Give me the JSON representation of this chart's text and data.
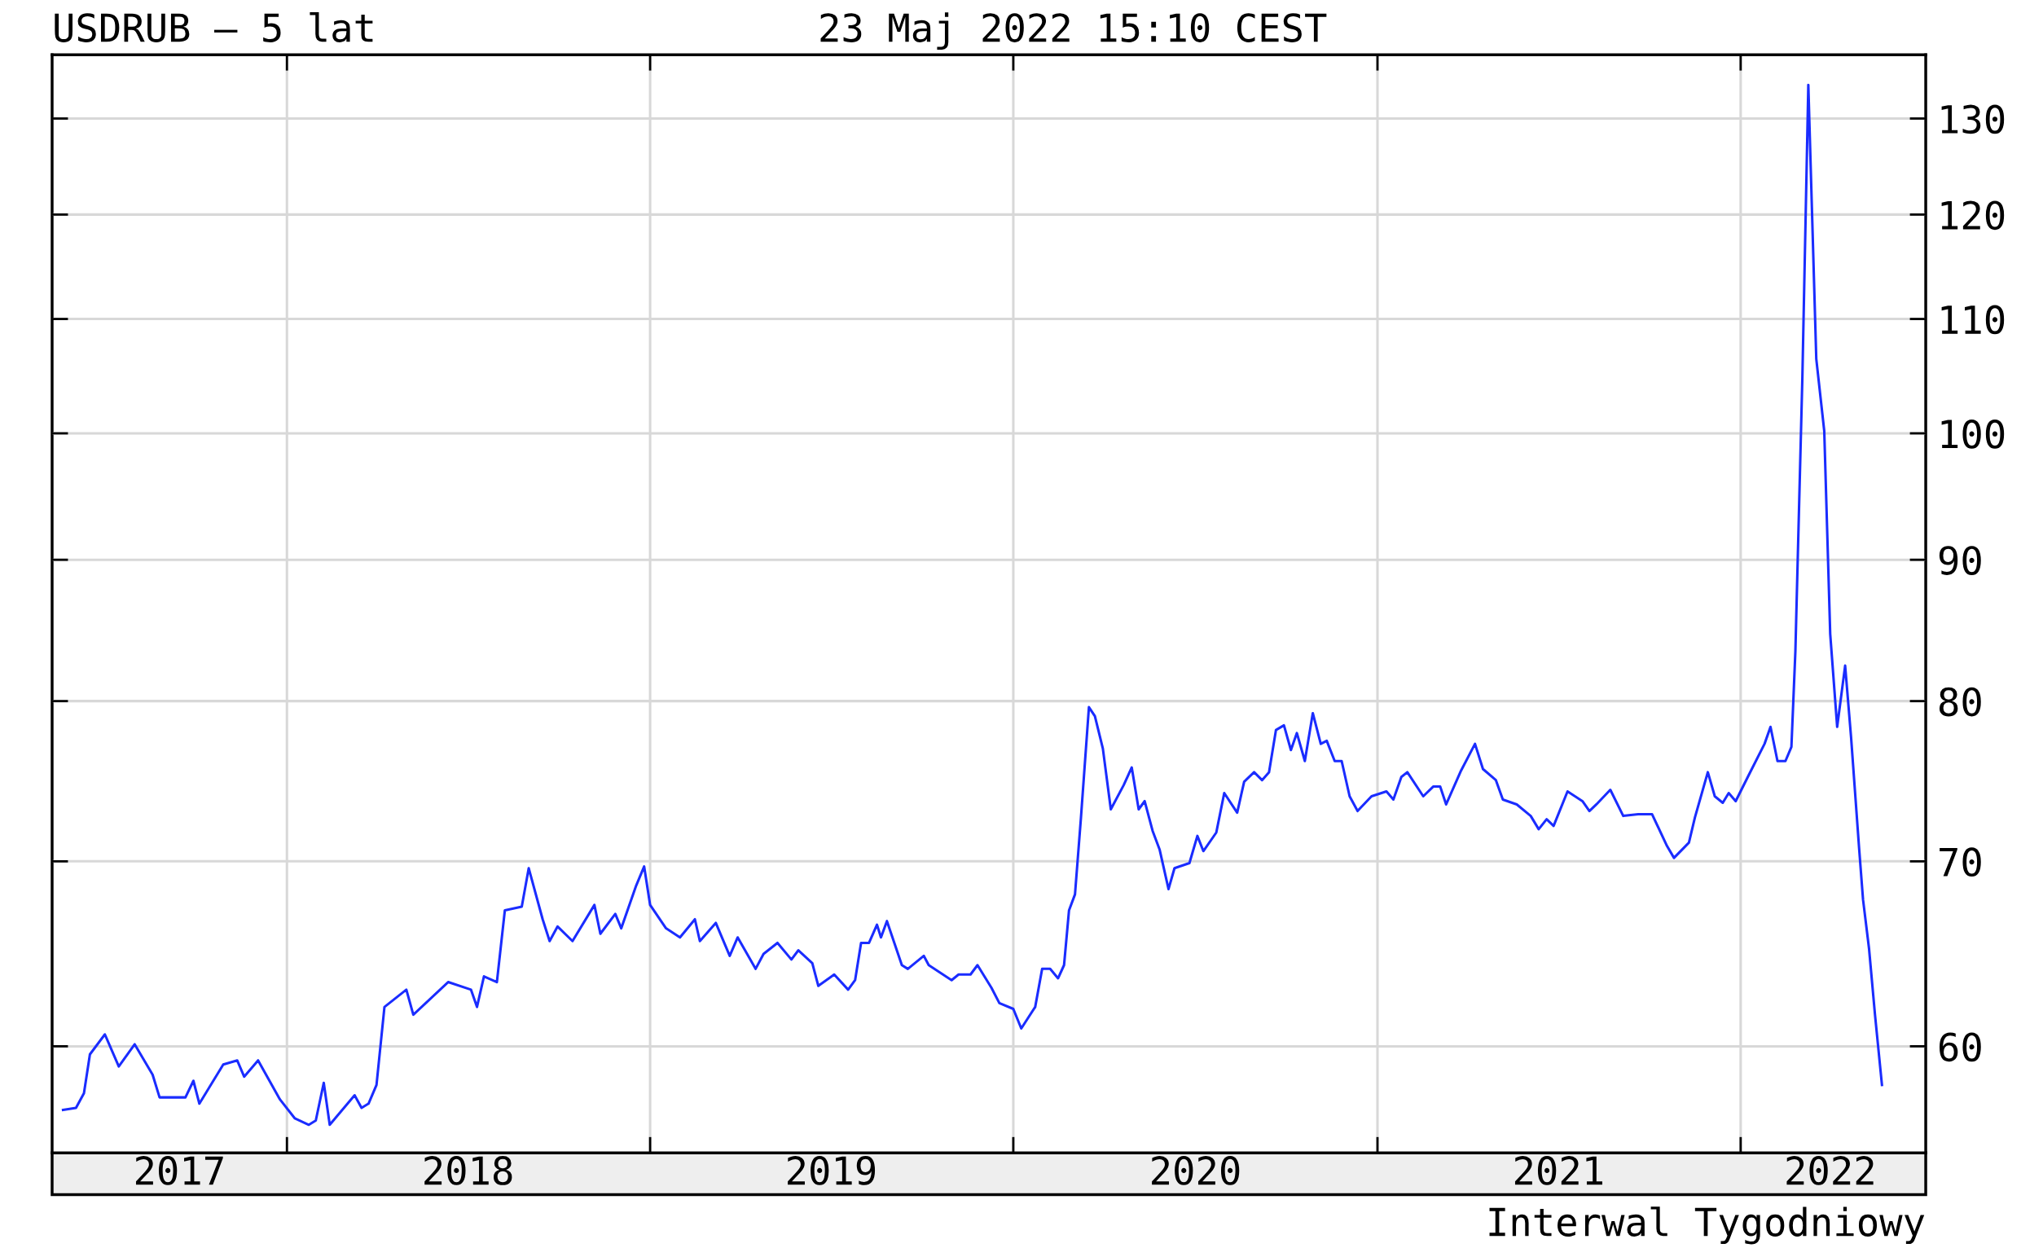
{
  "chart_data": {
    "type": "line",
    "title": "USDRUB – 5 lat",
    "subtitle": "23 Maj 2022 15:10 CEST",
    "annotations": [
      "Interwal Tygodniowy"
    ],
    "series": [
      {
        "color": "#1a2cff",
        "axis": "y2",
        "x": [
          "2017-05-21",
          "2017-06-03",
          "2017-06-11",
          "2017-06-17",
          "2017-07-02",
          "2017-07-16",
          "2017-08-01",
          "2017-08-19",
          "2017-08-26",
          "2017-09-21",
          "2017-09-29",
          "2017-10-05",
          "2017-10-29",
          "2017-11-12",
          "2017-11-19",
          "2017-12-03",
          "2017-12-25",
          "2018-01-09",
          "2018-01-23",
          "2018-01-30",
          "2018-02-07",
          "2018-02-13",
          "2018-03-10",
          "2018-03-17",
          "2018-03-24",
          "2018-04-01",
          "2018-04-09",
          "2018-05-01",
          "2018-05-08",
          "2018-06-12",
          "2018-07-05",
          "2018-07-11",
          "2018-07-18",
          "2018-07-31",
          "2018-08-08",
          "2018-08-25",
          "2018-09-01",
          "2018-09-15",
          "2018-09-22",
          "2018-09-30",
          "2018-10-15",
          "2018-11-06",
          "2018-11-12",
          "2018-11-27",
          "2018-12-03",
          "2018-12-18",
          "2018-12-26",
          "2019-01-01",
          "2019-01-17",
          "2019-01-31",
          "2019-02-15",
          "2019-02-20",
          "2019-03-08",
          "2019-03-22",
          "2019-03-30",
          "2019-04-17",
          "2019-04-25",
          "2019-05-09",
          "2019-05-23",
          "2019-05-30",
          "2019-06-13",
          "2019-06-19",
          "2019-07-05",
          "2019-07-19",
          "2019-07-26",
          "2019-08-01",
          "2019-08-09",
          "2019-08-17",
          "2019-08-21",
          "2019-08-27",
          "2019-09-11",
          "2019-09-17",
          "2019-10-03",
          "2019-10-08",
          "2019-10-31",
          "2019-11-07",
          "2019-11-19",
          "2019-11-26",
          "2019-12-10",
          "2019-12-18",
          "2020-01-01",
          "2020-01-09",
          "2020-01-23",
          "2020-01-30",
          "2020-02-07",
          "2020-02-15",
          "2020-02-21",
          "2020-02-26",
          "2020-03-03",
          "2020-03-09",
          "2020-03-17",
          "2020-03-23",
          "2020-03-31",
          "2020-04-08",
          "2020-04-21",
          "2020-04-29",
          "2020-05-06",
          "2020-05-12",
          "2020-05-20",
          "2020-05-27",
          "2020-06-05",
          "2020-06-11",
          "2020-06-26",
          "2020-07-04",
          "2020-07-10",
          "2020-07-23",
          "2020-07-31",
          "2020-08-13",
          "2020-08-20",
          "2020-08-30",
          "2020-09-07",
          "2020-09-14",
          "2020-09-21",
          "2020-09-29",
          "2020-10-06",
          "2020-10-12",
          "2020-10-20",
          "2020-10-28",
          "2020-11-05",
          "2020-11-11",
          "2020-11-19",
          "2020-11-26",
          "2020-12-04",
          "2020-12-12",
          "2020-12-26",
          "2021-01-10",
          "2021-01-17",
          "2021-01-25",
          "2021-01-31",
          "2021-02-16",
          "2021-02-26",
          "2021-03-05",
          "2021-03-11",
          "2021-03-26",
          "2021-04-09",
          "2021-04-17",
          "2021-04-30",
          "2021-05-07",
          "2021-05-21",
          "2021-06-04",
          "2021-06-12",
          "2021-06-20",
          "2021-06-27",
          "2021-07-11",
          "2021-07-26",
          "2021-08-02",
          "2021-08-09",
          "2021-08-23",
          "2021-09-05",
          "2021-09-20",
          "2021-10-04",
          "2021-10-19",
          "2021-10-26",
          "2021-11-10",
          "2021-11-16",
          "2021-11-29",
          "2021-12-06",
          "2021-12-14",
          "2021-12-20",
          "2021-12-27",
          "2022-01-09",
          "2022-01-25",
          "2022-01-31",
          "2022-02-07",
          "2022-02-15",
          "2022-02-21",
          "2022-02-25",
          "2022-03-04",
          "2022-03-10",
          "2022-03-18",
          "2022-03-26",
          "2022-04-01",
          "2022-04-08",
          "2022-04-16",
          "2022-04-22",
          "2022-04-30",
          "2022-05-04",
          "2022-05-10",
          "2022-05-16",
          "2022-05-23"
        ],
        "values": [
          56.9,
          57.0,
          57.7,
          59.6,
          60.6,
          59.0,
          60.1,
          58.6,
          57.5,
          57.5,
          58.3,
          57.2,
          59.1,
          59.3,
          58.5,
          59.3,
          57.4,
          56.5,
          56.2,
          56.4,
          58.2,
          56.2,
          57.6,
          57.0,
          57.2,
          58.1,
          62.0,
          62.9,
          61.6,
          63.3,
          62.9,
          62.0,
          63.6,
          63.3,
          67.2,
          67.4,
          69.6,
          66.7,
          65.5,
          66.3,
          65.5,
          67.5,
          65.9,
          67.0,
          66.2,
          68.6,
          69.7,
          67.5,
          66.2,
          65.7,
          66.7,
          65.5,
          66.5,
          64.7,
          65.7,
          64.0,
          64.8,
          65.4,
          64.5,
          65.0,
          64.3,
          63.1,
          63.7,
          62.9,
          63.4,
          65.4,
          65.4,
          66.4,
          65.7,
          66.6,
          64.2,
          64.0,
          64.7,
          64.2,
          63.4,
          63.7,
          63.7,
          64.2,
          63.0,
          62.2,
          61.9,
          60.9,
          62.0,
          64.0,
          64.0,
          63.5,
          64.2,
          67.2,
          68.1,
          72.6,
          79.6,
          79.0,
          76.9,
          73.1,
          74.6,
          75.7,
          73.1,
          73.6,
          71.8,
          70.7,
          68.4,
          69.6,
          69.9,
          71.5,
          70.6,
          71.7,
          74.1,
          72.9,
          74.8,
          75.4,
          74.9,
          75.4,
          78.1,
          78.4,
          76.8,
          77.9,
          76.1,
          79.2,
          77.2,
          77.4,
          76.1,
          76.1,
          73.9,
          73.0,
          73.9,
          74.2,
          73.7,
          75.1,
          75.4,
          73.9,
          74.5,
          74.5,
          73.4,
          75.5,
          77.2,
          75.6,
          74.9,
          73.7,
          73.4,
          72.7,
          71.9,
          72.5,
          72.1,
          74.2,
          73.6,
          73.0,
          73.4,
          74.3,
          72.7,
          72.8,
          72.8,
          70.9,
          70.2,
          71.1,
          72.6,
          75.4,
          73.9,
          73.5,
          74.1,
          73.6,
          75.2,
          77.2,
          78.3,
          76.1,
          76.1,
          77.0,
          83.4,
          104.7,
          133.7,
          106.4,
          100.2,
          84.6,
          78.3,
          82.4,
          77.6,
          70.8,
          67.8,
          65.1,
          61.6,
          58.1
        ]
      }
    ],
    "log": "y2",
    "xlim": [
      "2017-05-10",
      "2022-07-06"
    ],
    "xticks": [
      {
        "value": "2017-09-15",
        "label": "2017"
      },
      {
        "value": "2018-01-01",
        "label": null
      },
      {
        "value": "2018-07-02",
        "label": "2018"
      },
      {
        "value": "2019-01-01",
        "label": null
      },
      {
        "value": "2019-07-02",
        "label": "2019"
      },
      {
        "value": "2020-01-01",
        "label": null
      },
      {
        "value": "2020-07-02",
        "label": "2020"
      },
      {
        "value": "2021-01-01",
        "label": null
      },
      {
        "value": "2021-07-02",
        "label": "2021"
      },
      {
        "value": "2022-01-01",
        "label": null
      },
      {
        "value": "2022-04-01",
        "label": "2022"
      }
    ],
    "y2lim": [
      54.9,
      137.1
    ],
    "y2ticks": [
      60,
      70,
      80,
      90,
      100,
      110,
      120,
      130
    ],
    "grid": true,
    "legend": false,
    "marker": "none",
    "line_style": "solid"
  }
}
